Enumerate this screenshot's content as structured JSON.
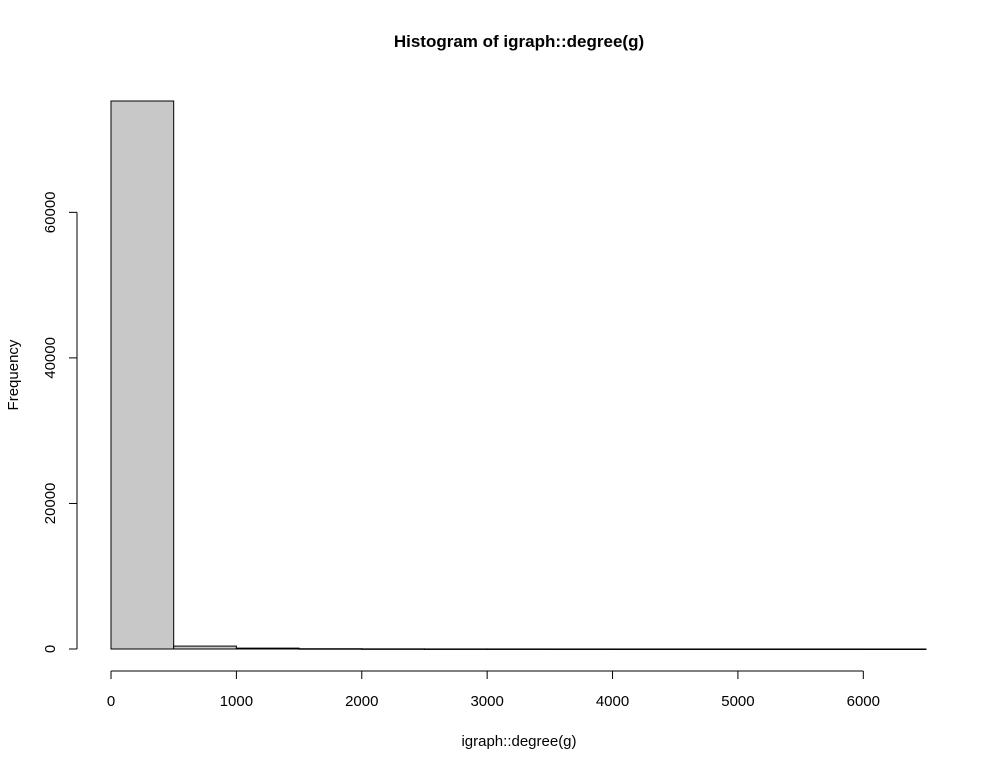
{
  "chart_data": {
    "type": "bar",
    "title": "Histogram of igraph::degree(g)",
    "xlabel": "igraph::degree(g)",
    "ylabel": "Frequency",
    "bin_edges": [
      0,
      500,
      1000,
      1500,
      2000,
      2500,
      3000,
      3500,
      4000,
      4500,
      5000,
      5500,
      6000,
      6500
    ],
    "values": [
      75300,
      400,
      120,
      40,
      20,
      10,
      8,
      5,
      4,
      3,
      2,
      2,
      1
    ],
    "xlim": [
      0,
      6500
    ],
    "ylim": [
      0,
      75300
    ],
    "x_ticks": [
      0,
      1000,
      2000,
      3000,
      4000,
      5000,
      6000
    ],
    "y_ticks": [
      0,
      20000,
      40000,
      60000
    ],
    "bar_color": "#c8c8c8",
    "grid": false,
    "legend": "none"
  }
}
